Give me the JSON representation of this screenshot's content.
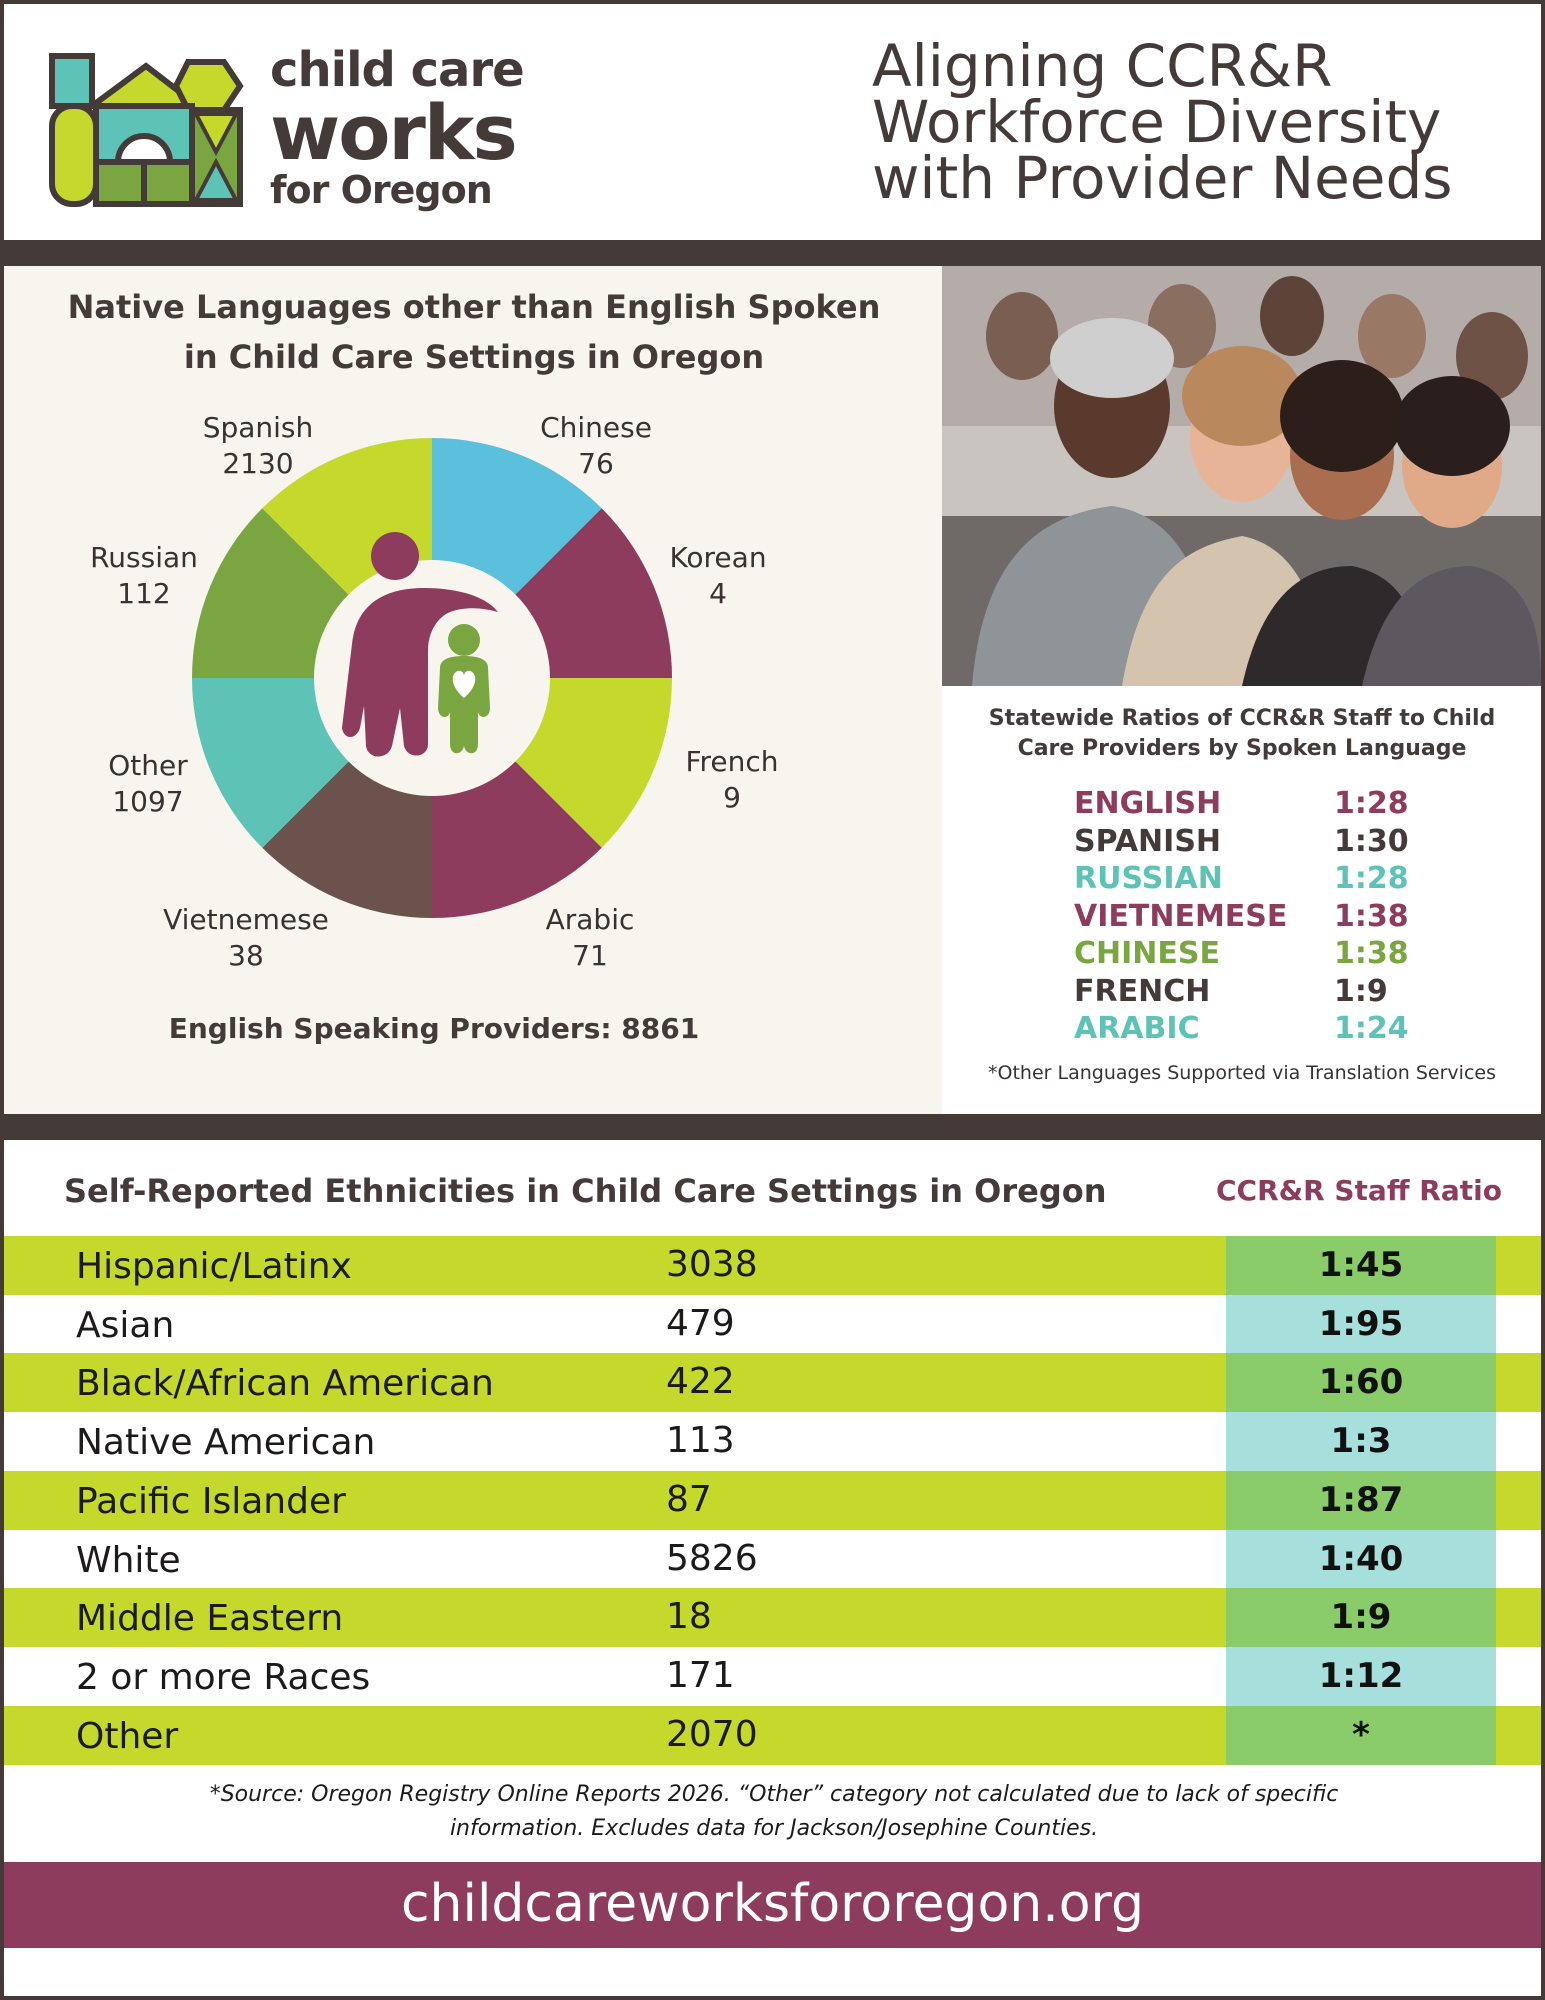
{
  "header": {
    "logo_line1": "child care",
    "logo_line2": "works",
    "logo_line3": "for Oregon",
    "title_line1": "Aligning CCR&R",
    "title_line2": "Workforce Diversity",
    "title_line3": "with Provider Needs"
  },
  "colors": {
    "plum": "#8d3c5e",
    "lime": "#c5d92d",
    "teal": "#5cc3b6",
    "sky": "#5bc0dc",
    "olive": "#7aa642",
    "brown": "#6b524c",
    "dark": "#443b39",
    "row_lime": "#c5d92d",
    "ratio_green": "#8acb6a",
    "ratio_teal": "#a7dfdc"
  },
  "chart_data": {
    "type": "pie",
    "title": "Native Languages other than English Spoken in Child Care Settings in Oregon",
    "title_line1": "Native Languages other than English Spoken",
    "title_line2": "in Child Care Settings in Oregon",
    "slices": [
      {
        "label": "Chinese",
        "value": 76,
        "color": "#5bc0dc"
      },
      {
        "label": "Korean",
        "value": 4,
        "color": "#8d3c5e"
      },
      {
        "label": "French",
        "value": 9,
        "color": "#c5d92d"
      },
      {
        "label": "Arabic",
        "value": 71,
        "color": "#8d3c5e"
      },
      {
        "label": "Vietnemese",
        "value": 38,
        "color": "#6b524c"
      },
      {
        "label": "Other",
        "value": 1097,
        "color": "#5cc3b6"
      },
      {
        "label": "Russian",
        "value": 112,
        "color": "#7aa642"
      },
      {
        "label": "Spanish",
        "value": 2130,
        "color": "#c5d92d"
      }
    ],
    "note": "English Speaking Providers: 8861"
  },
  "ratios": {
    "title_line1": "Statewide Ratios of CCR&R Staff to Child",
    "title_line2": "Care Providers by Spoken Language",
    "rows": [
      {
        "language": "ENGLISH",
        "ratio": "1:28",
        "color": "#8d3c5e"
      },
      {
        "language": "SPANISH",
        "ratio": "1:30",
        "color": "#443b39"
      },
      {
        "language": "RUSSIAN",
        "ratio": "1:28",
        "color": "#5cc3b6"
      },
      {
        "language": "VIETNEMESE",
        "ratio": "1:38",
        "color": "#8d3c5e"
      },
      {
        "language": "CHINESE",
        "ratio": "1:38",
        "color": "#7aa642"
      },
      {
        "language": "FRENCH",
        "ratio": "1:9",
        "color": "#443b39"
      },
      {
        "language": "ARABIC",
        "ratio": "1:24",
        "color": "#5cc3b6"
      }
    ],
    "note": "*Other Languages Supported via Translation Services"
  },
  "ethnicities": {
    "title": "Self-Reported Ethnicities in Child Care Settings in Oregon",
    "ratio_header": "CCR&R Staff Ratio",
    "rows": [
      {
        "name": "Hispanic/Latinx",
        "count": "3038",
        "ratio": "1:45"
      },
      {
        "name": "Asian",
        "count": "479",
        "ratio": "1:95"
      },
      {
        "name": "Black/African American",
        "count": "422",
        "ratio": "1:60"
      },
      {
        "name": "Native American",
        "count": "113",
        "ratio": "1:3"
      },
      {
        "name": "Pacific Islander",
        "count": "87",
        "ratio": "1:87"
      },
      {
        "name": "White",
        "count": "5826",
        "ratio": "1:40"
      },
      {
        "name": "Middle Eastern",
        "count": "18",
        "ratio": "1:9"
      },
      {
        "name": "2 or more Races",
        "count": "171",
        "ratio": "1:12"
      },
      {
        "name": "Other",
        "count": "2070",
        "ratio": "*"
      }
    ]
  },
  "source_line1": "*Source: Oregon Registry Online Reports 2026. “Other” category not calculated due to lack of specific",
  "source_line2": "information. Excludes data for Jackson/Josephine Counties.",
  "footer_url": "childcareworksfororegon.org"
}
